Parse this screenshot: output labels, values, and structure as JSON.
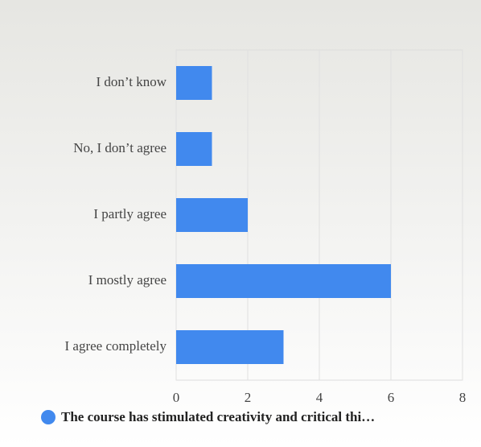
{
  "chart_data": {
    "type": "bar",
    "orientation": "horizontal",
    "categories": [
      "I don’t know",
      "No, I don’t agree",
      "I partly agree",
      "I mostly agree",
      "I agree completely"
    ],
    "series": [
      {
        "name": "The course has stimulated creativity and critical thi…",
        "color": "#4189ee",
        "values": [
          1,
          1,
          2,
          6,
          3
        ]
      }
    ],
    "xlim": [
      0,
      8
    ],
    "xticks": [
      0,
      2,
      4,
      6,
      8
    ],
    "grid": true
  }
}
